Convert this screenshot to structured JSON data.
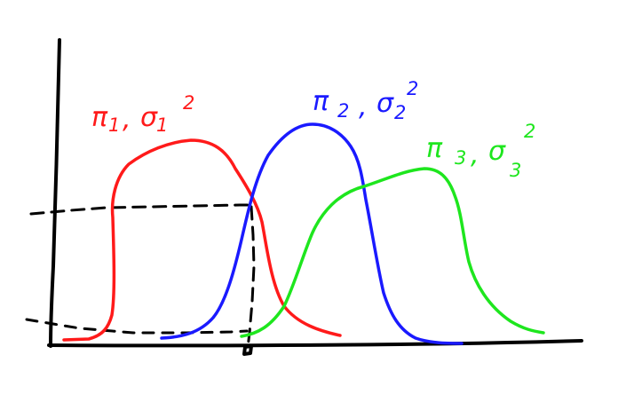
{
  "colors": {
    "background": "#ffffff",
    "axes": "#000000",
    "cluster_1": "#ff1a1a",
    "cluster_2": "#1a1aff",
    "cluster_3": "#1ee61e"
  },
  "labels": {
    "cluster_1": {
      "pi": "π",
      "pi_sub": "1",
      "sep": ",",
      "sigma": "σ",
      "sigma_sub": "1",
      "sigma_sup": "2"
    },
    "cluster_2": {
      "pi": "π",
      "pi_sub": "2",
      "sep": ",",
      "sigma": "σ",
      "sigma_sub": "2",
      "sigma_sup": "2"
    },
    "cluster_3": {
      "pi": "π",
      "pi_sub": "3",
      "sep": ",",
      "sigma": "σ",
      "sigma_sub": "3",
      "sigma_sup": "2"
    }
  }
}
